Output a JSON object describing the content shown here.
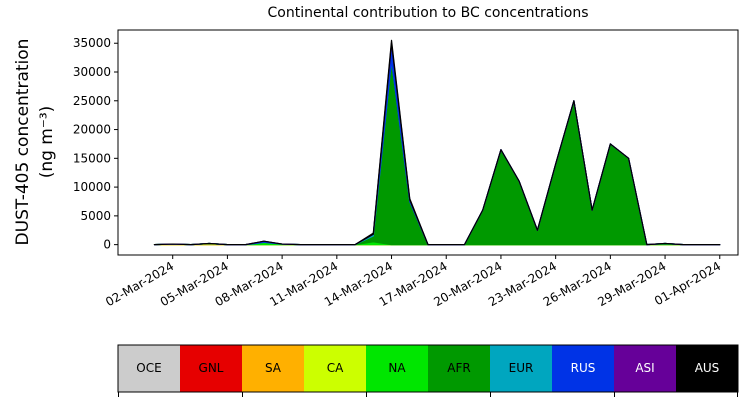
{
  "chart_data": {
    "type": "stacked_area",
    "title": "Continental contribution to BC concentrations",
    "ylabel": [
      "DUST-405 concentration",
      "(ng m⁻³)"
    ],
    "x": [
      "01-Mar-2024",
      "02-Mar-2024",
      "03-Mar-2024",
      "04-Mar-2024",
      "05-Mar-2024",
      "06-Mar-2024",
      "07-Mar-2024",
      "08-Mar-2024",
      "09-Mar-2024",
      "10-Mar-2024",
      "11-Mar-2024",
      "12-Mar-2024",
      "13-Mar-2024",
      "14-Mar-2024",
      "15-Mar-2024",
      "16-Mar-2024",
      "17-Mar-2024",
      "18-Mar-2024",
      "19-Mar-2024",
      "20-Mar-2024",
      "21-Mar-2024",
      "22-Mar-2024",
      "23-Mar-2024",
      "24-Mar-2024",
      "25-Mar-2024",
      "26-Mar-2024",
      "27-Mar-2024",
      "28-Mar-2024",
      "29-Mar-2024",
      "30-Mar-2024",
      "31-Mar-2024",
      "01-Apr-2024"
    ],
    "series": [
      {
        "name": "OCE",
        "color": "#cccccc",
        "values": [
          0,
          0,
          0,
          0,
          0,
          0,
          0,
          0,
          0,
          0,
          0,
          0,
          0,
          0,
          0,
          0,
          0,
          0,
          0,
          0,
          0,
          0,
          0,
          0,
          0,
          0,
          0,
          0,
          0,
          0,
          0,
          0
        ]
      },
      {
        "name": "GNL",
        "color": "#e60000",
        "values": [
          0,
          0,
          0,
          0,
          0,
          0,
          0,
          0,
          0,
          0,
          0,
          0,
          0,
          0,
          0,
          0,
          0,
          0,
          0,
          0,
          0,
          0,
          0,
          0,
          0,
          0,
          0,
          0,
          0,
          0,
          0,
          0
        ]
      },
      {
        "name": "SA",
        "color": "#ffb000",
        "values": [
          0,
          0,
          0,
          0,
          0,
          0,
          0,
          0,
          0,
          0,
          0,
          0,
          0,
          0,
          0,
          0,
          0,
          0,
          0,
          0,
          0,
          0,
          0,
          0,
          0,
          0,
          0,
          0,
          0,
          0,
          0,
          0
        ]
      },
      {
        "name": "CA",
        "color": "#ccff00",
        "values": [
          0,
          100,
          0,
          200,
          0,
          0,
          0,
          0,
          0,
          0,
          0,
          0,
          0,
          0,
          0,
          0,
          0,
          0,
          0,
          0,
          0,
          0,
          0,
          0,
          0,
          0,
          0,
          0,
          0,
          0,
          0,
          0
        ]
      },
      {
        "name": "NA",
        "color": "#00e600",
        "values": [
          0,
          0,
          0,
          0,
          0,
          0,
          400,
          100,
          0,
          0,
          0,
          0,
          500,
          0,
          0,
          0,
          0,
          0,
          0,
          0,
          0,
          0,
          0,
          0,
          0,
          0,
          0,
          0,
          200,
          0,
          0,
          0
        ]
      },
      {
        "name": "AFR",
        "color": "#009900",
        "values": [
          0,
          0,
          0,
          0,
          0,
          0,
          0,
          0,
          0,
          0,
          0,
          0,
          1000,
          32000,
          7500,
          0,
          0,
          0,
          6000,
          16500,
          11000,
          2500,
          14000,
          25000,
          6000,
          17500,
          15000,
          0,
          0,
          0,
          0,
          0
        ]
      },
      {
        "name": "EUR",
        "color": "#00a6bf",
        "values": [
          0,
          0,
          0,
          0,
          0,
          0,
          0,
          0,
          0,
          0,
          0,
          0,
          300,
          0,
          0,
          0,
          0,
          0,
          0,
          0,
          0,
          0,
          0,
          0,
          0,
          0,
          0,
          0,
          0,
          0,
          0,
          0
        ]
      },
      {
        "name": "RUS",
        "color": "#0033e6",
        "values": [
          0,
          0,
          0,
          0,
          0,
          0,
          200,
          0,
          0,
          0,
          0,
          0,
          0,
          3000,
          300,
          0,
          0,
          0,
          0,
          0,
          0,
          0,
          0,
          0,
          0,
          0,
          0,
          0,
          0,
          0,
          0,
          0
        ]
      },
      {
        "name": "ASI",
        "color": "#660099",
        "values": [
          0,
          0,
          0,
          0,
          0,
          0,
          0,
          0,
          0,
          0,
          0,
          0,
          0,
          0,
          0,
          0,
          0,
          0,
          0,
          0,
          0,
          0,
          0,
          0,
          0,
          0,
          0,
          0,
          0,
          0,
          0,
          0
        ]
      },
      {
        "name": "AUS",
        "color": "#000000",
        "values": [
          0,
          0,
          0,
          0,
          0,
          0,
          0,
          0,
          0,
          0,
          0,
          0,
          200,
          500,
          200,
          0,
          0,
          0,
          0,
          0,
          0,
          0,
          0,
          0,
          0,
          0,
          0,
          0,
          0,
          0,
          0,
          0
        ]
      }
    ],
    "xlim": [
      "28-Feb-2024",
      "02-Apr-2024"
    ],
    "xticks": [
      "02-Mar-2024",
      "05-Mar-2024",
      "08-Mar-2024",
      "11-Mar-2024",
      "14-Mar-2024",
      "17-Mar-2024",
      "20-Mar-2024",
      "23-Mar-2024",
      "26-Mar-2024",
      "29-Mar-2024",
      "01-Apr-2024"
    ],
    "ylim": [
      -1800,
      37300
    ],
    "yticks": [
      0,
      5000,
      10000,
      15000,
      20000,
      25000,
      30000,
      35000
    ]
  }
}
